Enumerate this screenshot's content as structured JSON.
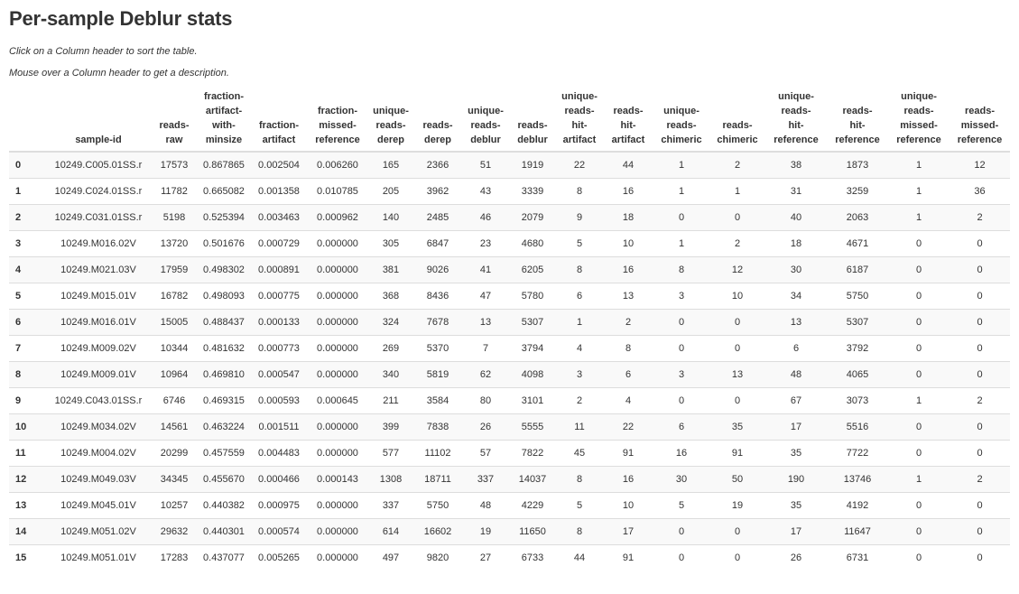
{
  "title": "Per-sample Deblur stats",
  "hints": {
    "sort": "Click on a Column header to sort the table.",
    "describe": "Mouse over a Column header to get a description."
  },
  "columns": [
    [
      "sample-id"
    ],
    [
      "reads-",
      "raw"
    ],
    [
      "fraction-",
      "artifact-",
      "with-",
      "minsize"
    ],
    [
      "fraction-",
      "artifact"
    ],
    [
      "fraction-",
      "missed-",
      "reference"
    ],
    [
      "unique-",
      "reads-",
      "derep"
    ],
    [
      "reads-",
      "derep"
    ],
    [
      "unique-",
      "reads-",
      "deblur"
    ],
    [
      "reads-",
      "deblur"
    ],
    [
      "unique-",
      "reads-",
      "hit-",
      "artifact"
    ],
    [
      "reads-",
      "hit-",
      "artifact"
    ],
    [
      "unique-",
      "reads-",
      "chimeric"
    ],
    [
      "reads-",
      "chimeric"
    ],
    [
      "unique-",
      "reads-",
      "hit-",
      "reference"
    ],
    [
      "reads-",
      "hit-",
      "reference"
    ],
    [
      "unique-",
      "reads-",
      "missed-",
      "reference"
    ],
    [
      "reads-",
      "missed-",
      "reference"
    ]
  ],
  "rows": [
    [
      "0",
      "10249.C005.01SS.r",
      "17573",
      "0.867865",
      "0.002504",
      "0.006260",
      "165",
      "2366",
      "51",
      "1919",
      "22",
      "44",
      "1",
      "2",
      "38",
      "1873",
      "1",
      "12"
    ],
    [
      "1",
      "10249.C024.01SS.r",
      "11782",
      "0.665082",
      "0.001358",
      "0.010785",
      "205",
      "3962",
      "43",
      "3339",
      "8",
      "16",
      "1",
      "1",
      "31",
      "3259",
      "1",
      "36"
    ],
    [
      "2",
      "10249.C031.01SS.r",
      "5198",
      "0.525394",
      "0.003463",
      "0.000962",
      "140",
      "2485",
      "46",
      "2079",
      "9",
      "18",
      "0",
      "0",
      "40",
      "2063",
      "1",
      "2"
    ],
    [
      "3",
      "10249.M016.02V",
      "13720",
      "0.501676",
      "0.000729",
      "0.000000",
      "305",
      "6847",
      "23",
      "4680",
      "5",
      "10",
      "1",
      "2",
      "18",
      "4671",
      "0",
      "0"
    ],
    [
      "4",
      "10249.M021.03V",
      "17959",
      "0.498302",
      "0.000891",
      "0.000000",
      "381",
      "9026",
      "41",
      "6205",
      "8",
      "16",
      "8",
      "12",
      "30",
      "6187",
      "0",
      "0"
    ],
    [
      "5",
      "10249.M015.01V",
      "16782",
      "0.498093",
      "0.000775",
      "0.000000",
      "368",
      "8436",
      "47",
      "5780",
      "6",
      "13",
      "3",
      "10",
      "34",
      "5750",
      "0",
      "0"
    ],
    [
      "6",
      "10249.M016.01V",
      "15005",
      "0.488437",
      "0.000133",
      "0.000000",
      "324",
      "7678",
      "13",
      "5307",
      "1",
      "2",
      "0",
      "0",
      "13",
      "5307",
      "0",
      "0"
    ],
    [
      "7",
      "10249.M009.02V",
      "10344",
      "0.481632",
      "0.000773",
      "0.000000",
      "269",
      "5370",
      "7",
      "3794",
      "4",
      "8",
      "0",
      "0",
      "6",
      "3792",
      "0",
      "0"
    ],
    [
      "8",
      "10249.M009.01V",
      "10964",
      "0.469810",
      "0.000547",
      "0.000000",
      "340",
      "5819",
      "62",
      "4098",
      "3",
      "6",
      "3",
      "13",
      "48",
      "4065",
      "0",
      "0"
    ],
    [
      "9",
      "10249.C043.01SS.r",
      "6746",
      "0.469315",
      "0.000593",
      "0.000645",
      "211",
      "3584",
      "80",
      "3101",
      "2",
      "4",
      "0",
      "0",
      "67",
      "3073",
      "1",
      "2"
    ],
    [
      "10",
      "10249.M034.02V",
      "14561",
      "0.463224",
      "0.001511",
      "0.000000",
      "399",
      "7838",
      "26",
      "5555",
      "11",
      "22",
      "6",
      "35",
      "17",
      "5516",
      "0",
      "0"
    ],
    [
      "11",
      "10249.M004.02V",
      "20299",
      "0.457559",
      "0.004483",
      "0.000000",
      "577",
      "11102",
      "57",
      "7822",
      "45",
      "91",
      "16",
      "91",
      "35",
      "7722",
      "0",
      "0"
    ],
    [
      "12",
      "10249.M049.03V",
      "34345",
      "0.455670",
      "0.000466",
      "0.000143",
      "1308",
      "18711",
      "337",
      "14037",
      "8",
      "16",
      "30",
      "50",
      "190",
      "13746",
      "1",
      "2"
    ],
    [
      "13",
      "10249.M045.01V",
      "10257",
      "0.440382",
      "0.000975",
      "0.000000",
      "337",
      "5750",
      "48",
      "4229",
      "5",
      "10",
      "5",
      "19",
      "35",
      "4192",
      "0",
      "0"
    ],
    [
      "14",
      "10249.M051.02V",
      "29632",
      "0.440301",
      "0.000574",
      "0.000000",
      "614",
      "16602",
      "19",
      "11650",
      "8",
      "17",
      "0",
      "0",
      "17",
      "11647",
      "0",
      "0"
    ],
    [
      "15",
      "10249.M051.01V",
      "17283",
      "0.437077",
      "0.005265",
      "0.000000",
      "497",
      "9820",
      "27",
      "6733",
      "44",
      "91",
      "0",
      "0",
      "26",
      "6731",
      "0",
      "0"
    ]
  ]
}
